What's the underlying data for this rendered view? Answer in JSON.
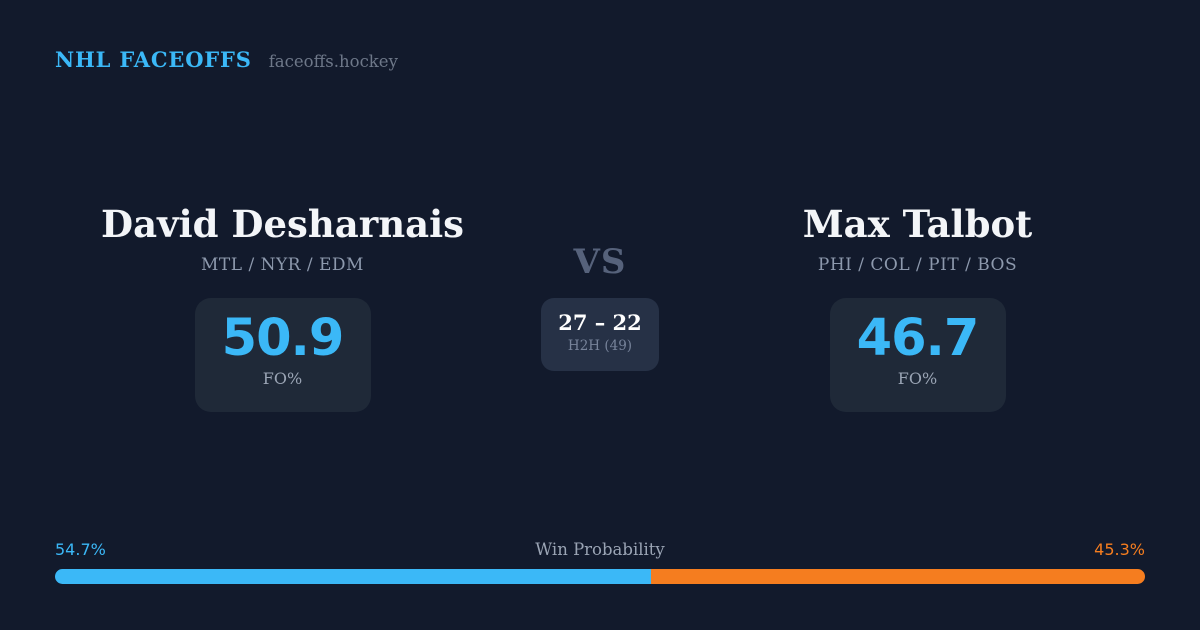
{
  "brand": {
    "title": "NHL FACEOFFS",
    "domain": "faceoffs.hockey"
  },
  "left_player": {
    "name": "David Desharnais",
    "teams": "MTL / NYR / EDM",
    "fo_value": "50.9",
    "fo_label": "FO%",
    "win_prob_label": "54.7%",
    "win_prob_pct": 54.7
  },
  "right_player": {
    "name": "Max Talbot",
    "teams": "PHI / COL / PIT / BOS",
    "fo_value": "46.7",
    "fo_label": "FO%",
    "win_prob_label": "45.3%",
    "win_prob_pct": 45.3
  },
  "center": {
    "vs": "VS",
    "h2h_score": "27 – 22",
    "h2h_label": "H2H (49)"
  },
  "footer": {
    "title": "Win Probability"
  },
  "colors": {
    "bg": "#121a2c",
    "panel": "#1f2938",
    "panel_center": "#263146",
    "blue": "#3bb8f7",
    "orange": "#f57d1f",
    "name": "#f3f5f8",
    "teams": "#8d99ad",
    "vs": "#56627b",
    "muted": "#9aa4b4",
    "muted2": "#77839a",
    "domain_gray": "#6e7889"
  }
}
